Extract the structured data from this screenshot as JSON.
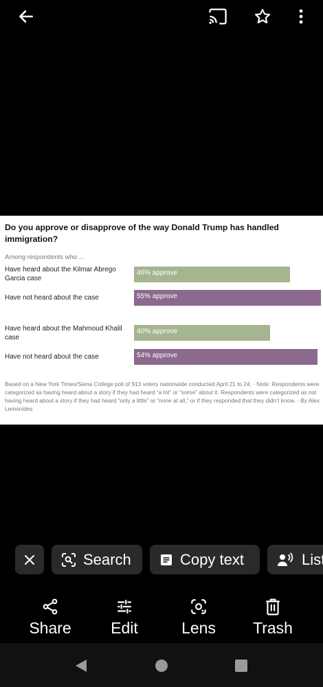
{
  "top_bar": {
    "back_icon": "arrow-left-icon",
    "cast_icon": "cast-icon",
    "favorite_icon": "star-outline-icon",
    "more_icon": "more-vertical-icon"
  },
  "image": {
    "title": "Do you approve or disapprove of the way Donald Trump has handled immigration?",
    "subtitle": "Among respondents who ...",
    "rows": [
      {
        "label": "Have heard about the Kilmar Abrego Garcia case",
        "value": 46,
        "bar_text": "46% approve",
        "color": "#a5b58f"
      },
      {
        "label": "Have not heard about the case",
        "value": 55,
        "bar_text": "55% approve",
        "color": "#8c6a8d"
      },
      {
        "label": "Have heard about the Mahmoud Khalil case",
        "value": 40,
        "bar_text": "40% approve",
        "color": "#a5b58f"
      },
      {
        "label": "Have not heard about the case",
        "value": 54,
        "bar_text": "54% approve",
        "color": "#8c6a8d"
      }
    ],
    "note": "Based on a New York Times/Siena College poll of 913 voters nationwide conducted April 21 to 24.  ·  Note: Respondents were categorized as having heard about a story if they had heard “a lot” or “some” about it. Respondents were categorized as not having heard about a story if they had heard “only a little” or “none at all,” or if they responded that they didn’t know.  ·  By Alex Lemonides"
  },
  "lens_chips": {
    "close_icon": "close-icon",
    "search_label": "Search",
    "copy_text_label": "Copy text",
    "listen_label": "Listen"
  },
  "actions": {
    "share_label": "Share",
    "edit_label": "Edit",
    "lens_label": "Lens",
    "trash_label": "Trash"
  },
  "nav": {
    "back_icon": "nav-back-icon",
    "home_icon": "nav-home-icon",
    "recents_icon": "nav-recents-icon"
  }
}
